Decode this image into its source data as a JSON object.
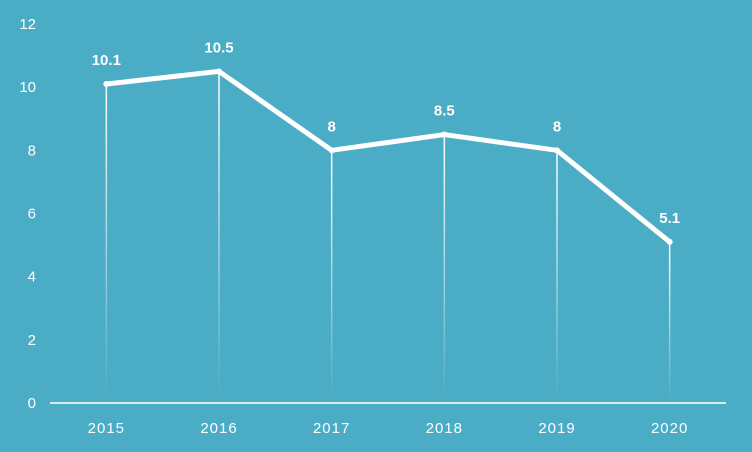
{
  "chart_data": {
    "type": "line",
    "categories": [
      "2015",
      "2016",
      "2017",
      "2018",
      "2019",
      "2020"
    ],
    "values": [
      10.1,
      10.5,
      8,
      8.5,
      8,
      5.1
    ],
    "data_labels": [
      "10.1",
      "10.5",
      "8",
      "8.5",
      "8",
      "5.1"
    ],
    "y_ticks": [
      "0",
      "2",
      "4",
      "6",
      "8",
      "10",
      "12"
    ],
    "ylim": [
      0,
      12
    ],
    "title": "",
    "xlabel": "",
    "ylabel": "",
    "grid": false,
    "drop_lines": true,
    "colors": {
      "background": "#4aacc5",
      "line": "#ffffff",
      "text": "#ffffff"
    }
  }
}
